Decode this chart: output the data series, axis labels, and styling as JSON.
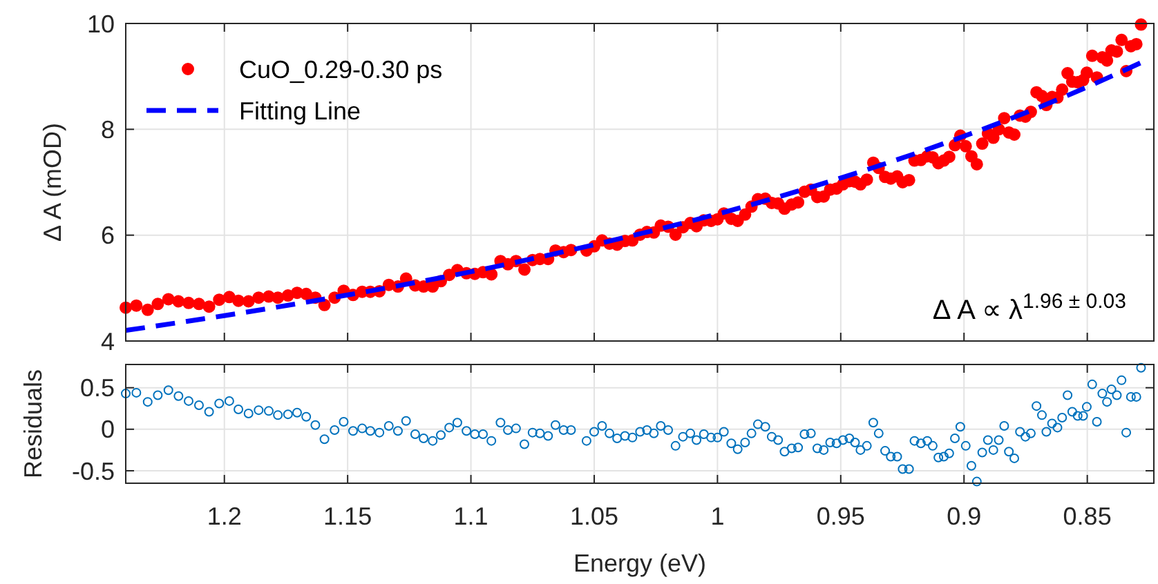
{
  "chart_data": [
    {
      "type": "scatter",
      "legend": "top left",
      "grid": true,
      "tick_labels": "y",
      "ylabel": "Δ A (mOD)",
      "xlim": [
        1.24,
        0.823
      ],
      "xticks": [
        1.2,
        1.15,
        1.1,
        1.05,
        1,
        0.95,
        0.9,
        0.85
      ],
      "ylim": [
        4,
        10
      ],
      "yticks": [
        4,
        6,
        8,
        10
      ],
      "annotations": [
        "Δ A ∝ λ$^{1.96 ± 0.03}$"
      ],
      "series": [
        {
          "name": "CuO_0.29-0.30 ps",
          "marker": "circle",
          "color": "#ff0000",
          "x": [
            1.24,
            1.2357,
            1.2311,
            1.227,
            1.2227,
            1.2186,
            1.2145,
            1.2103,
            1.2062,
            1.2021,
            1.198,
            1.1943,
            1.1902,
            1.1861,
            1.182,
            1.1783,
            1.1742,
            1.1705,
            1.1668,
            1.1631,
            1.1594,
            1.1553,
            1.1516,
            1.1478,
            1.1441,
            1.1408,
            1.1371,
            1.1333,
            1.1296,
            1.1263,
            1.1226,
            1.1192,
            1.1155,
            1.1122,
            1.1088,
            1.1055,
            1.1018,
            1.0984,
            1.0951,
            1.0917,
            1.088,
            1.085,
            1.0817,
            1.0783,
            1.075,
            1.072,
            1.0687,
            1.0657,
            1.0624,
            1.0594,
            1.0531,
            1.05,
            1.0468,
            1.0438,
            1.0407,
            1.0375,
            1.0345,
            1.0314,
            1.0286,
            1.0258,
            1.023,
            1.02,
            1.017,
            1.014,
            1.011,
            1.0085,
            1.0055,
            1.0026,
            1.0,
            0.9974,
            0.9944,
            0.9918,
            0.9888,
            0.9862,
            0.9836,
            0.9806,
            0.978,
            0.9754,
            0.9728,
            0.9699,
            0.9673,
            0.9647,
            0.9621,
            0.9595,
            0.9569,
            0.9543,
            0.9517,
            0.9491,
            0.9465,
            0.9442,
            0.942,
            0.9394,
            0.9368,
            0.9346,
            0.932,
            0.9297,
            0.9271,
            0.9249,
            0.9223,
            0.9201,
            0.9175,
            0.9149,
            0.9127,
            0.9104,
            0.9082,
            0.906,
            0.9037,
            0.9015,
            0.8993,
            0.897,
            0.8948,
            0.8926,
            0.8903,
            0.8881,
            0.8859,
            0.8837,
            0.8818,
            0.8796,
            0.8773,
            0.8751,
            0.8729,
            0.8706,
            0.8684,
            0.8666,
            0.8643,
            0.8621,
            0.8602,
            0.858,
            0.8561,
            0.8539,
            0.8517,
            0.8502,
            0.848,
            0.8461,
            0.8439,
            0.842,
            0.8402,
            0.838,
            0.8361,
            0.8342,
            0.8323,
            0.8301,
            0.8282
          ],
          "values": [
            4.63,
            4.67,
            4.59,
            4.7,
            4.79,
            4.75,
            4.72,
            4.7,
            4.65,
            4.78,
            4.83,
            4.76,
            4.75,
            4.82,
            4.84,
            4.82,
            4.86,
            4.91,
            4.89,
            4.82,
            4.68,
            4.82,
            4.95,
            4.87,
            4.93,
            4.93,
            4.94,
            5.06,
            5.03,
            5.18,
            5.05,
            5.03,
            5.03,
            5.13,
            5.25,
            5.34,
            5.28,
            5.27,
            5.3,
            5.26,
            5.51,
            5.45,
            5.51,
            5.35,
            5.53,
            5.55,
            5.55,
            5.71,
            5.68,
            5.72,
            5.71,
            5.79,
            5.9,
            5.84,
            5.82,
            5.89,
            5.9,
            6.01,
            6.06,
            6.05,
            6.18,
            6.16,
            6.01,
            6.15,
            6.23,
            6.17,
            6.28,
            6.27,
            6.3,
            6.41,
            6.31,
            6.27,
            6.39,
            6.54,
            6.68,
            6.69,
            6.61,
            6.6,
            6.5,
            6.58,
            6.62,
            6.82,
            6.86,
            6.72,
            6.73,
            6.86,
            6.88,
            6.96,
            7.02,
            7.01,
            6.96,
            7.05,
            7.37,
            7.27,
            7.1,
            7.07,
            7.11,
            7.0,
            7.04,
            7.41,
            7.42,
            7.49,
            7.47,
            7.36,
            7.41,
            7.48,
            7.7,
            7.88,
            7.68,
            7.49,
            7.34,
            7.73,
            7.92,
            7.84,
            8.0,
            8.21,
            7.94,
            7.9,
            8.26,
            8.24,
            8.33,
            8.7,
            8.63,
            8.46,
            8.61,
            8.6,
            8.75,
            9.06,
            8.9,
            8.89,
            8.93,
            9.07,
            9.39,
            8.98,
            9.36,
            9.3,
            9.49,
            9.47,
            9.69,
            9.1,
            9.57,
            9.61,
            9.98
          ]
        },
        {
          "name": "Fitting Line",
          "type": "line",
          "line_style": "dashed",
          "color": "#0000ff",
          "x": [
            1.24,
            1.2,
            1.15,
            1.1,
            1.05,
            1.0,
            0.95,
            0.9,
            0.85,
            0.8282
          ],
          "values": [
            4.2,
            4.48,
            4.87,
            5.31,
            5.82,
            6.4,
            7.08,
            7.87,
            8.8,
            9.26
          ]
        }
      ]
    },
    {
      "type": "scatter",
      "marker": "circle",
      "grid": true,
      "xlabel": "Energy (eV)",
      "ylabel": "Residuals",
      "xlim": [
        1.24,
        0.823
      ],
      "xticks": [
        1.2,
        1.15,
        1.1,
        1.05,
        1,
        0.95,
        0.9,
        0.85
      ],
      "ylim": [
        -0.65,
        0.78
      ],
      "yticks": [
        -0.5,
        0,
        0.5
      ],
      "series": [
        {
          "color": "#0072bd",
          "x": [
            1.24,
            1.2357,
            1.2311,
            1.227,
            1.2227,
            1.2186,
            1.2145,
            1.2103,
            1.2062,
            1.2021,
            1.198,
            1.1943,
            1.1902,
            1.1861,
            1.182,
            1.1783,
            1.1742,
            1.1705,
            1.1668,
            1.1631,
            1.1594,
            1.1553,
            1.1516,
            1.1478,
            1.1441,
            1.1408,
            1.1371,
            1.1333,
            1.1296,
            1.1263,
            1.1226,
            1.1192,
            1.1155,
            1.1122,
            1.1088,
            1.1055,
            1.1018,
            1.0984,
            1.0951,
            1.0917,
            1.088,
            1.085,
            1.0817,
            1.0783,
            1.075,
            1.072,
            1.0687,
            1.0657,
            1.0624,
            1.0594,
            1.0531,
            1.05,
            1.0468,
            1.0438,
            1.0407,
            1.0375,
            1.0345,
            1.0314,
            1.0286,
            1.0258,
            1.023,
            1.02,
            1.017,
            1.014,
            1.011,
            1.0085,
            1.0055,
            1.0026,
            1.0,
            0.9974,
            0.9944,
            0.9918,
            0.9888,
            0.9862,
            0.9836,
            0.9806,
            0.978,
            0.9754,
            0.9728,
            0.9699,
            0.9673,
            0.9647,
            0.9621,
            0.9595,
            0.9569,
            0.9543,
            0.9517,
            0.9491,
            0.9465,
            0.9442,
            0.942,
            0.9394,
            0.9368,
            0.9346,
            0.932,
            0.9297,
            0.9271,
            0.9249,
            0.9223,
            0.9201,
            0.9175,
            0.9149,
            0.9127,
            0.9104,
            0.9082,
            0.906,
            0.9037,
            0.9015,
            0.8993,
            0.897,
            0.8948,
            0.8926,
            0.8903,
            0.8881,
            0.8859,
            0.8837,
            0.8818,
            0.8796,
            0.8773,
            0.8751,
            0.8729,
            0.8706,
            0.8684,
            0.8666,
            0.8643,
            0.8621,
            0.8602,
            0.858,
            0.8561,
            0.8539,
            0.8517,
            0.8502,
            0.848,
            0.8461,
            0.8439,
            0.842,
            0.8402,
            0.838,
            0.8361,
            0.8342,
            0.8323,
            0.8301,
            0.8282
          ],
          "values": [
            0.43,
            0.44,
            0.33,
            0.41,
            0.47,
            0.4,
            0.34,
            0.29,
            0.21,
            0.31,
            0.34,
            0.24,
            0.19,
            0.23,
            0.22,
            0.17,
            0.18,
            0.2,
            0.15,
            0.05,
            -0.12,
            -0.01,
            0.09,
            -0.02,
            0.01,
            -0.02,
            -0.04,
            0.04,
            -0.02,
            0.1,
            -0.06,
            -0.11,
            -0.14,
            -0.07,
            0.02,
            0.08,
            -0.02,
            -0.06,
            -0.06,
            -0.14,
            0.08,
            -0.01,
            0.01,
            -0.18,
            -0.04,
            -0.05,
            -0.08,
            0.05,
            -0.01,
            -0.01,
            -0.14,
            -0.03,
            0.04,
            -0.05,
            -0.11,
            -0.08,
            -0.1,
            -0.03,
            -0.01,
            -0.05,
            0.04,
            -0.01,
            -0.2,
            -0.09,
            -0.05,
            -0.13,
            -0.06,
            -0.1,
            -0.1,
            -0.03,
            -0.17,
            -0.24,
            -0.16,
            -0.05,
            0.06,
            0.03,
            -0.09,
            -0.13,
            -0.27,
            -0.23,
            -0.22,
            -0.06,
            -0.05,
            -0.23,
            -0.25,
            -0.16,
            -0.17,
            -0.13,
            -0.11,
            -0.16,
            -0.25,
            -0.2,
            0.08,
            -0.05,
            -0.26,
            -0.33,
            -0.33,
            -0.48,
            -0.48,
            -0.14,
            -0.17,
            -0.14,
            -0.2,
            -0.34,
            -0.33,
            -0.29,
            -0.11,
            0.03,
            -0.2,
            -0.44,
            -0.63,
            -0.28,
            -0.13,
            -0.25,
            -0.13,
            0.04,
            -0.27,
            -0.35,
            -0.03,
            -0.09,
            -0.05,
            0.28,
            0.17,
            -0.03,
            0.07,
            0.02,
            0.14,
            0.41,
            0.21,
            0.16,
            0.16,
            0.27,
            0.54,
            0.09,
            0.43,
            0.33,
            0.48,
            0.41,
            0.59,
            -0.04,
            0.39,
            0.39,
            0.74
          ]
        }
      ]
    }
  ]
}
